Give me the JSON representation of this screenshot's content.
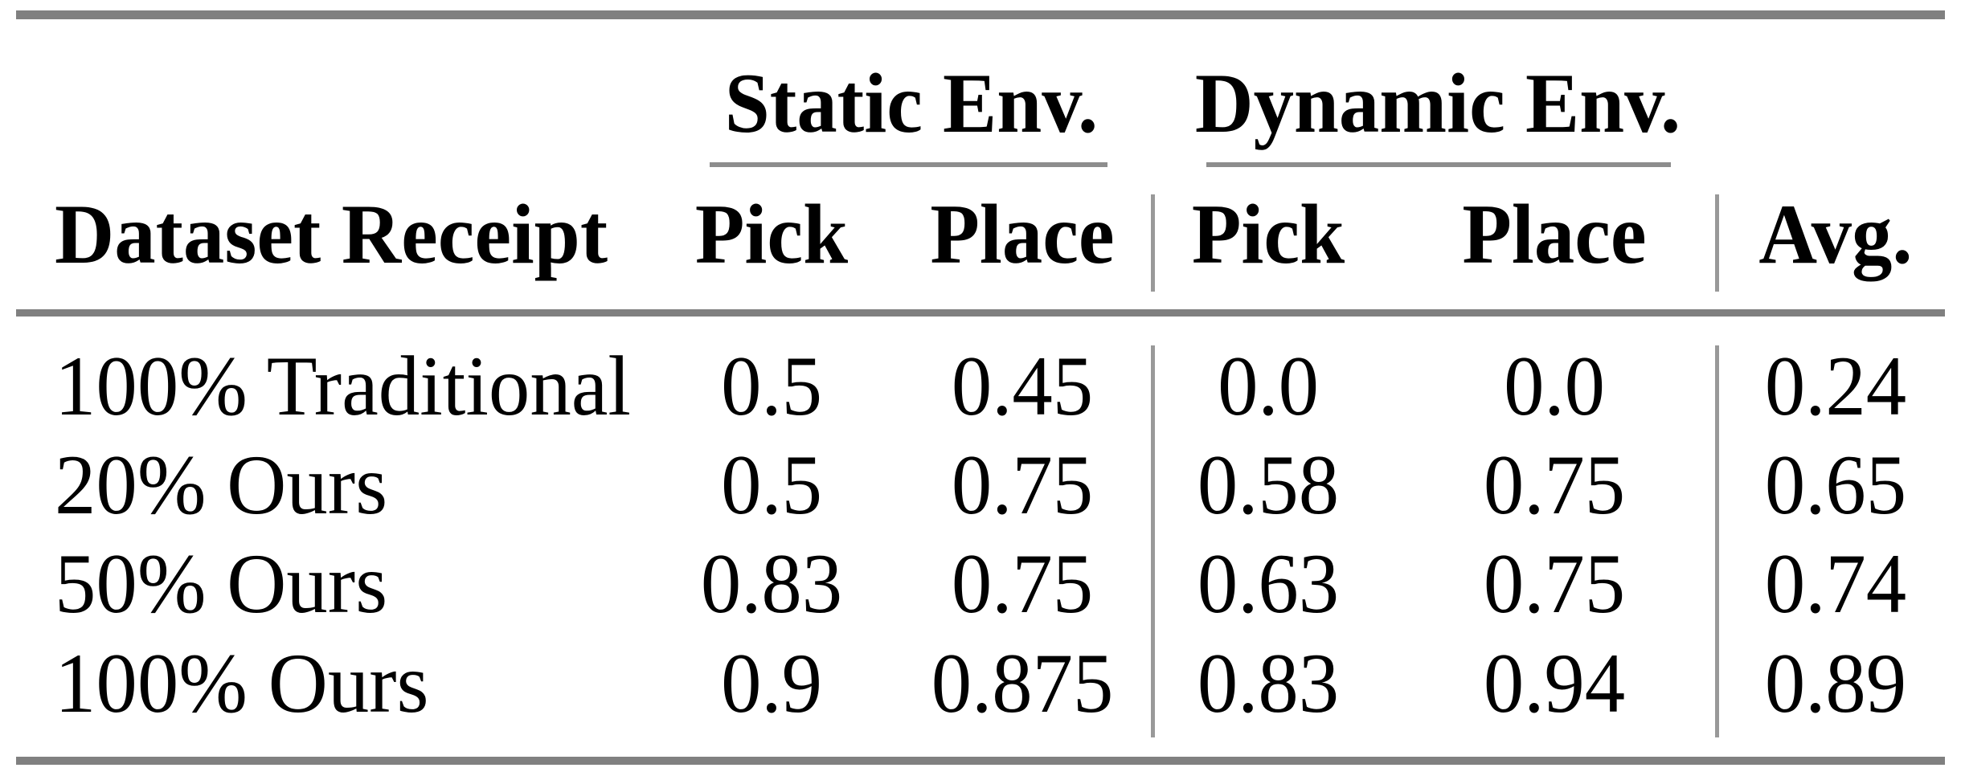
{
  "table": {
    "group_headers": {
      "static": "Static Env.",
      "dynamic": "Dynamic Env."
    },
    "columns": {
      "row_header": "Dataset Receipt",
      "static_pick": "Pick",
      "static_place": "Place",
      "dynamic_pick": "Pick",
      "dynamic_place": "Place",
      "avg": "Avg."
    },
    "rows": [
      {
        "label": "100% Traditional",
        "values": [
          "0.5",
          "0.45",
          "0.0",
          "0.0",
          "0.24"
        ]
      },
      {
        "label": "20% Ours",
        "values": [
          "0.5",
          "0.75",
          "0.58",
          "0.75",
          "0.65"
        ]
      },
      {
        "label": "50% Ours",
        "values": [
          "0.83",
          "0.75",
          "0.63",
          "0.75",
          "0.74"
        ]
      },
      {
        "label": "100% Ours",
        "values": [
          "0.9",
          "0.875",
          "0.83",
          "0.94",
          "0.89"
        ]
      }
    ]
  },
  "colors": {
    "background": "#ffffff",
    "text": "#000000",
    "thick_rule": "#808080",
    "cmidrule": "#8d8d8d",
    "vline": "#999999"
  }
}
